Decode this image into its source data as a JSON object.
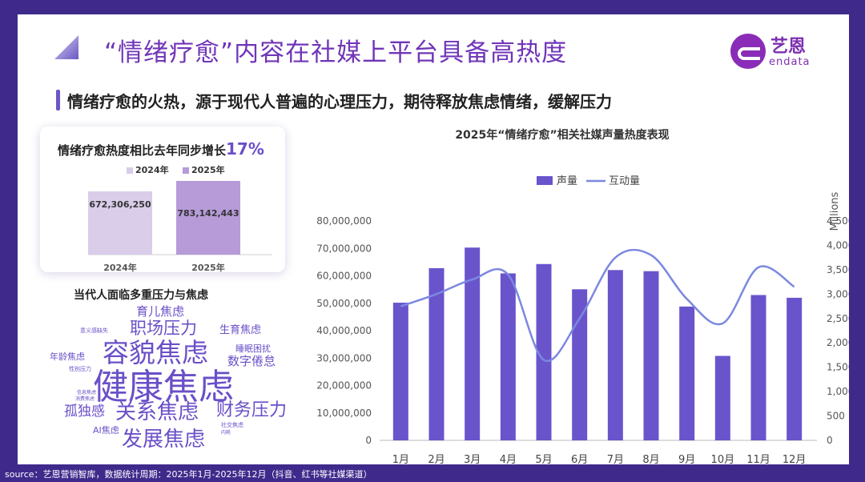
{
  "header": {
    "title": "“情绪疗愈”内容在社媒上平台具备高热度",
    "subtitle": "情绪疗愈的火热，源于现代人普遍的心理压力，期待释放焦虑情绪，缓解压力"
  },
  "logo": {
    "cn": "艺恩",
    "en": "endata",
    "icon": "endata-e-icon"
  },
  "colors": {
    "accent": "#7035b8",
    "bar": "#6a54cc",
    "line": "#7b88e0",
    "bar2024": "#d9cdea",
    "bar2025": "#b79bd8"
  },
  "growth_card": {
    "title": "情绪疗愈热度相比去年同步增长",
    "percent": "17%",
    "legend": [
      "2024年",
      "2025年"
    ],
    "value_labels": [
      "672,306,250",
      "783,142,443"
    ]
  },
  "word_cloud": {
    "title": "当代人面临多重压力与焦虑",
    "words": [
      "育儿焦虑",
      "意义感缺失",
      "职场压力",
      "生育焦虑",
      "容貌焦虑",
      "年龄焦虑",
      "睡眠困扰",
      "数字倦怠",
      "性别压力",
      "健康焦虑",
      "信息焦虑",
      "孤独感",
      "关系焦虑",
      "财务压力",
      "AI焦虑",
      "社交焦虑",
      "发展焦虑",
      "消费焦虑",
      "内耗"
    ]
  },
  "chart_data": [
    {
      "type": "bar",
      "categories": [
        "2024年",
        "2025年"
      ],
      "values": [
        672306250,
        783142443
      ],
      "title": "情绪疗愈热度相比去年同步增长17%",
      "ylim": [
        0,
        800000000
      ]
    },
    {
      "type": "bar+line",
      "title": "2025年“情绪疗愈”相关社媒声量热度表现",
      "categories": [
        "1月",
        "2月",
        "3月",
        "4月",
        "5月",
        "6月",
        "7月",
        "8月",
        "9月",
        "10月",
        "11月",
        "12月"
      ],
      "series": [
        {
          "name": "声量",
          "type": "bar",
          "axis": "left",
          "values": [
            50200000,
            62800000,
            70300000,
            60900000,
            64300000,
            55100000,
            62100000,
            61700000,
            48800000,
            30800000,
            53000000,
            52000000
          ]
        },
        {
          "name": "互动量",
          "type": "line",
          "axis": "right",
          "values": [
            2750,
            3000,
            3300,
            3400,
            1650,
            2500,
            3750,
            3800,
            2900,
            2400,
            3550,
            3150
          ]
        }
      ],
      "y_left": {
        "ylim": [
          0,
          80000000
        ],
        "ticks": [
          "0",
          "10,000,000",
          "20,000,000",
          "30,000,000",
          "40,000,000",
          "50,000,000",
          "60,000,000",
          "70,000,000",
          "80,000,000"
        ]
      },
      "y_right": {
        "label": "Millions",
        "ylim": [
          0,
          4500
        ],
        "ticks": [
          "0",
          "500",
          "1,000",
          "1,500",
          "2,000",
          "2,500",
          "3,000",
          "3,500",
          "4,000",
          "4,500"
        ]
      },
      "legend": "top-center"
    }
  ],
  "footer": {
    "source": "source：艺恩营销智库，数据统计周期：2025年1月-2025年12月（抖音、红书等社媒渠道）"
  }
}
